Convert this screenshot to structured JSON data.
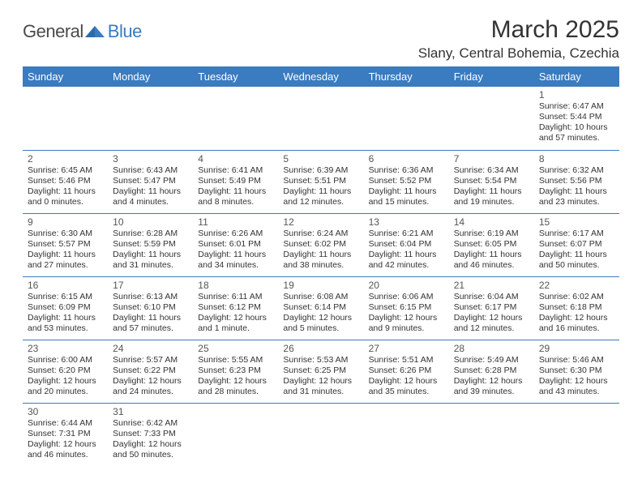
{
  "logo": {
    "part1": "General",
    "part2": "Blue"
  },
  "title": "March 2025",
  "location": "Slany, Central Bohemia, Czechia",
  "colors": {
    "header_bg": "#3b7bbf",
    "header_text": "#ffffff",
    "border": "#3b7bbf",
    "text": "#333333",
    "daynum": "#555555",
    "logo_gray": "#4a4a4a",
    "logo_blue": "#3b7bbf"
  },
  "weekdays": [
    "Sunday",
    "Monday",
    "Tuesday",
    "Wednesday",
    "Thursday",
    "Friday",
    "Saturday"
  ],
  "weeks": [
    [
      null,
      null,
      null,
      null,
      null,
      null,
      {
        "n": "1",
        "sunrise": "6:47 AM",
        "sunset": "5:44 PM",
        "daylight": "10 hours and 57 minutes."
      }
    ],
    [
      {
        "n": "2",
        "sunrise": "6:45 AM",
        "sunset": "5:46 PM",
        "daylight": "11 hours and 0 minutes."
      },
      {
        "n": "3",
        "sunrise": "6:43 AM",
        "sunset": "5:47 PM",
        "daylight": "11 hours and 4 minutes."
      },
      {
        "n": "4",
        "sunrise": "6:41 AM",
        "sunset": "5:49 PM",
        "daylight": "11 hours and 8 minutes."
      },
      {
        "n": "5",
        "sunrise": "6:39 AM",
        "sunset": "5:51 PM",
        "daylight": "11 hours and 12 minutes."
      },
      {
        "n": "6",
        "sunrise": "6:36 AM",
        "sunset": "5:52 PM",
        "daylight": "11 hours and 15 minutes."
      },
      {
        "n": "7",
        "sunrise": "6:34 AM",
        "sunset": "5:54 PM",
        "daylight": "11 hours and 19 minutes."
      },
      {
        "n": "8",
        "sunrise": "6:32 AM",
        "sunset": "5:56 PM",
        "daylight": "11 hours and 23 minutes."
      }
    ],
    [
      {
        "n": "9",
        "sunrise": "6:30 AM",
        "sunset": "5:57 PM",
        "daylight": "11 hours and 27 minutes."
      },
      {
        "n": "10",
        "sunrise": "6:28 AM",
        "sunset": "5:59 PM",
        "daylight": "11 hours and 31 minutes."
      },
      {
        "n": "11",
        "sunrise": "6:26 AM",
        "sunset": "6:01 PM",
        "daylight": "11 hours and 34 minutes."
      },
      {
        "n": "12",
        "sunrise": "6:24 AM",
        "sunset": "6:02 PM",
        "daylight": "11 hours and 38 minutes."
      },
      {
        "n": "13",
        "sunrise": "6:21 AM",
        "sunset": "6:04 PM",
        "daylight": "11 hours and 42 minutes."
      },
      {
        "n": "14",
        "sunrise": "6:19 AM",
        "sunset": "6:05 PM",
        "daylight": "11 hours and 46 minutes."
      },
      {
        "n": "15",
        "sunrise": "6:17 AM",
        "sunset": "6:07 PM",
        "daylight": "11 hours and 50 minutes."
      }
    ],
    [
      {
        "n": "16",
        "sunrise": "6:15 AM",
        "sunset": "6:09 PM",
        "daylight": "11 hours and 53 minutes."
      },
      {
        "n": "17",
        "sunrise": "6:13 AM",
        "sunset": "6:10 PM",
        "daylight": "11 hours and 57 minutes."
      },
      {
        "n": "18",
        "sunrise": "6:11 AM",
        "sunset": "6:12 PM",
        "daylight": "12 hours and 1 minute."
      },
      {
        "n": "19",
        "sunrise": "6:08 AM",
        "sunset": "6:14 PM",
        "daylight": "12 hours and 5 minutes."
      },
      {
        "n": "20",
        "sunrise": "6:06 AM",
        "sunset": "6:15 PM",
        "daylight": "12 hours and 9 minutes."
      },
      {
        "n": "21",
        "sunrise": "6:04 AM",
        "sunset": "6:17 PM",
        "daylight": "12 hours and 12 minutes."
      },
      {
        "n": "22",
        "sunrise": "6:02 AM",
        "sunset": "6:18 PM",
        "daylight": "12 hours and 16 minutes."
      }
    ],
    [
      {
        "n": "23",
        "sunrise": "6:00 AM",
        "sunset": "6:20 PM",
        "daylight": "12 hours and 20 minutes."
      },
      {
        "n": "24",
        "sunrise": "5:57 AM",
        "sunset": "6:22 PM",
        "daylight": "12 hours and 24 minutes."
      },
      {
        "n": "25",
        "sunrise": "5:55 AM",
        "sunset": "6:23 PM",
        "daylight": "12 hours and 28 minutes."
      },
      {
        "n": "26",
        "sunrise": "5:53 AM",
        "sunset": "6:25 PM",
        "daylight": "12 hours and 31 minutes."
      },
      {
        "n": "27",
        "sunrise": "5:51 AM",
        "sunset": "6:26 PM",
        "daylight": "12 hours and 35 minutes."
      },
      {
        "n": "28",
        "sunrise": "5:49 AM",
        "sunset": "6:28 PM",
        "daylight": "12 hours and 39 minutes."
      },
      {
        "n": "29",
        "sunrise": "5:46 AM",
        "sunset": "6:30 PM",
        "daylight": "12 hours and 43 minutes."
      }
    ],
    [
      {
        "n": "30",
        "sunrise": "6:44 AM",
        "sunset": "7:31 PM",
        "daylight": "12 hours and 46 minutes."
      },
      {
        "n": "31",
        "sunrise": "6:42 AM",
        "sunset": "7:33 PM",
        "daylight": "12 hours and 50 minutes."
      },
      null,
      null,
      null,
      null,
      null
    ]
  ],
  "labels": {
    "sunrise": "Sunrise:",
    "sunset": "Sunset:",
    "daylight": "Daylight:"
  }
}
